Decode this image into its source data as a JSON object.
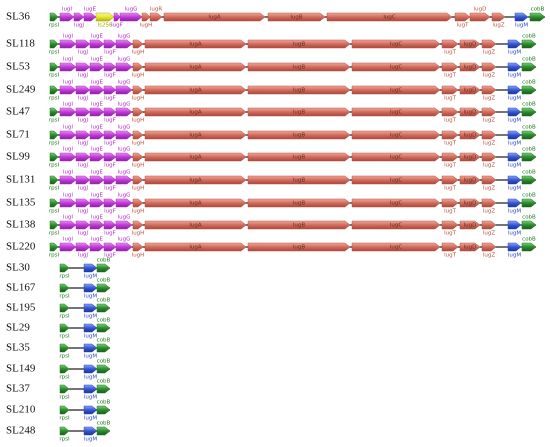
{
  "rows": [
    {
      "strain": "SL36",
      "genes": [
        "rpsI",
        "lugI",
        "lugJ",
        "lugE",
        "Is256",
        "lugF",
        "lugG",
        "lugH",
        "lugR",
        "lugA",
        "lugB",
        "lugC",
        "lugT",
        "lugD",
        "lugZ",
        "lugM",
        "cobB"
      ]
    },
    {
      "strain": "SL118",
      "genes": [
        "rpsI",
        "lugI",
        "lugJ",
        "lugE",
        "lugF",
        "lugG",
        "lugH",
        "lugA",
        "lugB",
        "lugC",
        "lugT",
        "lugD",
        "lugZ",
        "lugM",
        "cobB"
      ]
    },
    {
      "strain": "SL53",
      "genes": [
        "rpsI",
        "lugI",
        "lugJ",
        "lugE",
        "lugF",
        "lugG",
        "lugH",
        "lugA",
        "lugB",
        "lugC",
        "lugT",
        "lugD",
        "lugZ",
        "lugM",
        "cobB"
      ]
    },
    {
      "strain": "SL249",
      "genes": [
        "rpsI",
        "lugI",
        "lugJ",
        "lugE",
        "lugF",
        "lugG",
        "lugH",
        "lugA",
        "lugB",
        "lugC",
        "lugT",
        "lugD",
        "lugZ",
        "lugM",
        "cobB"
      ]
    },
    {
      "strain": "SL47",
      "genes": [
        "rpsI",
        "lugI",
        "lugJ",
        "lugE",
        "lugF",
        "lugG",
        "lugH",
        "lugA",
        "lugB",
        "lugC",
        "lugT",
        "lugD",
        "lugZ",
        "lugM",
        "cobB"
      ]
    },
    {
      "strain": "SL71",
      "genes": [
        "rpsI",
        "lugI",
        "lugJ",
        "lugE",
        "lugF",
        "lugG",
        "lugH",
        "lugA",
        "lugB",
        "lugC",
        "lugT",
        "lugD",
        "lugZ",
        "lugM",
        "cobB"
      ]
    },
    {
      "strain": "SL99",
      "genes": [
        "rpsI",
        "lugI",
        "lugJ",
        "lugE",
        "lugF",
        "lugG",
        "lugH",
        "lugA",
        "lugB",
        "lugC",
        "lugT",
        "lugD",
        "lugZ",
        "lugM",
        "cobB"
      ]
    },
    {
      "strain": "SL131",
      "genes": [
        "rpsI",
        "lugI",
        "lugJ",
        "lugE",
        "lugF",
        "lugG",
        "lugH",
        "lugA",
        "lugB",
        "lugC",
        "lugT",
        "lugD",
        "lugZ",
        "lugM",
        "cobB"
      ]
    },
    {
      "strain": "SL135",
      "genes": [
        "rpsI",
        "lugI",
        "lugJ",
        "lugE",
        "lugF",
        "lugG",
        "lugH",
        "lugA",
        "lugB",
        "lugC",
        "lugT",
        "lugD",
        "lugZ",
        "lugM",
        "cobB"
      ]
    },
    {
      "strain": "SL138",
      "genes": [
        "rpsI",
        "lugI",
        "lugJ",
        "lugE",
        "lugF",
        "lugG",
        "lugH",
        "lugA",
        "lugB",
        "lugC",
        "lugT",
        "lugD",
        "lugZ",
        "lugM",
        "cobB"
      ]
    },
    {
      "strain": "SL220",
      "genes": [
        "rpsI",
        "lugI",
        "lugJ",
        "lugE",
        "lugF",
        "lugG",
        "lugH",
        "lugA",
        "lugB",
        "lugC",
        "lugT",
        "lugD",
        "lugZ",
        "lugM",
        "cobB"
      ]
    },
    {
      "strain": "SL30",
      "genes": [
        "rpsI",
        "lugM",
        "cobB"
      ]
    },
    {
      "strain": "SL167",
      "genes": [
        "rpsI",
        "lugM",
        "cobB"
      ]
    },
    {
      "strain": "SL195",
      "genes": [
        "rpsI",
        "lugM",
        "cobB"
      ]
    },
    {
      "strain": "SL29",
      "genes": [
        "rpsI",
        "lugM",
        "cobB"
      ]
    },
    {
      "strain": "SL35",
      "genes": [
        "rpsI",
        "lugM",
        "cobB"
      ]
    },
    {
      "strain": "SL149",
      "genes": [
        "rpsI",
        "lugM",
        "cobB"
      ]
    },
    {
      "strain": "SL37",
      "genes": [
        "rpsI",
        "lugM",
        "cobB"
      ]
    },
    {
      "strain": "SL210",
      "genes": [
        "rpsI",
        "lugM",
        "cobB"
      ]
    },
    {
      "strain": "SL248",
      "genes": [
        "rpsI",
        "lugM",
        "cobB"
      ]
    }
  ]
}
